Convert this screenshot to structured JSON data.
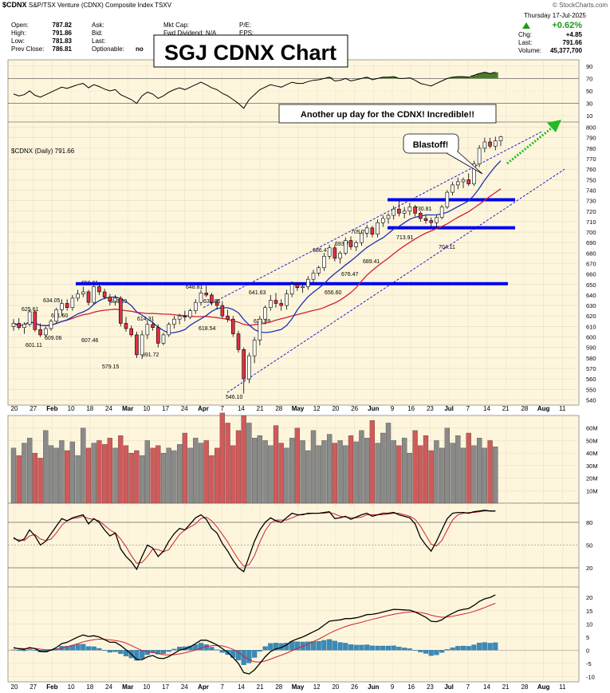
{
  "header": {
    "symbol": "$CDNX",
    "description": "S&P/TSX Venture (CDNX) Composite Index  TSXV",
    "quote_labels": [
      "Open:",
      "High:",
      "Low:",
      "Prev Close:"
    ],
    "quote_values": [
      "787.82",
      "791.86",
      "781.83",
      "786.81"
    ],
    "mid_labels": [
      "Ask:",
      "Bid:",
      "Last:",
      "Optionable:"
    ],
    "optionable_value": "no",
    "cap_labels": [
      "Mkt Cap:",
      "Fwd Dividend: N/A"
    ],
    "pe_labels": [
      "P/E:",
      "EPS:"
    ],
    "watermark": "© StockCharts.com",
    "date": "Thursday  17-Jul-2025",
    "change_pct": "+0.62%",
    "right_labels": [
      "Chg:",
      "Last:",
      "Volume:"
    ],
    "right_values": [
      "+4.85",
      "791.66",
      "45,377,700"
    ]
  },
  "title_box": "SGJ CDNX Chart",
  "annotations": {
    "another_up_day": "Another up day for the CDNX!  Incredible!!",
    "blastoff": "Blastoff!"
  },
  "colors": {
    "background_main": "#fdf6dd",
    "up": "#ffffff",
    "down": "#e03040",
    "ma_fast": "#2030b0",
    "ma_slow": "#d02030",
    "resistance": "#0000ee",
    "channel": "#2020cc",
    "arrow": "#22bb22",
    "volume_up": "#8a8a8a",
    "volume_down": "#d05a5a",
    "rsi_fill": "#4a7a2a",
    "macd_hist": "#3a8ab8"
  },
  "chart_data": {
    "type": "candlestick",
    "series_label": "$CDNX (Daily) 791.66",
    "price_axis_ticks": [
      540,
      550,
      560,
      570,
      580,
      590,
      600,
      610,
      620,
      630,
      640,
      650,
      660,
      670,
      680,
      690,
      700,
      710,
      720,
      730,
      740,
      750,
      760,
      770,
      780,
      790,
      800
    ],
    "rsi_axis_ticks": [
      10,
      30,
      50,
      70,
      90
    ],
    "volume_axis_ticks": [
      "10M",
      "20M",
      "30M",
      "40M",
      "50M",
      "60M"
    ],
    "stoch_axis_ticks": [
      20,
      50,
      80
    ],
    "macd_axis_ticks": [
      -10,
      -5,
      0,
      5,
      10,
      15,
      20
    ],
    "x_axis_labels": [
      "20",
      "27",
      "Feb",
      "10",
      "18",
      "24",
      "Mar",
      "10",
      "17",
      "24",
      "Apr",
      "7",
      "14",
      "21",
      "28",
      "May",
      "12",
      "20",
      "26",
      "Jun",
      "9",
      "16",
      "23",
      "Jul",
      "7",
      "14",
      "21",
      "28",
      "Aug",
      "11"
    ],
    "price_ylim": [
      535,
      805
    ],
    "candles": [
      [
        610,
        617,
        606,
        613
      ],
      [
        613,
        618,
        607,
        609
      ],
      [
        609,
        614,
        603,
        612
      ],
      [
        612,
        626,
        610,
        624
      ],
      [
        624,
        626,
        605,
        607
      ],
      [
        607,
        613,
        600,
        602
      ],
      [
        602,
        610,
        600,
        608
      ],
      [
        608,
        617,
        606,
        615
      ],
      [
        615,
        628,
        613,
        626
      ],
      [
        626,
        636,
        620,
        632
      ],
      [
        632,
        636,
        625,
        628
      ],
      [
        628,
        640,
        625,
        637
      ],
      [
        637,
        645,
        634,
        641
      ],
      [
        641,
        648,
        638,
        643
      ],
      [
        643,
        645,
        630,
        633
      ],
      [
        633,
        651,
        631,
        648
      ],
      [
        648,
        652,
        640,
        643
      ],
      [
        643,
        646,
        636,
        638
      ],
      [
        638,
        641,
        630,
        634
      ],
      [
        634,
        640,
        630,
        637
      ],
      [
        637,
        639,
        610,
        613
      ],
      [
        613,
        619,
        605,
        608
      ],
      [
        608,
        611,
        600,
        602
      ],
      [
        602,
        605,
        580,
        583
      ],
      [
        583,
        606,
        579,
        602
      ],
      [
        602,
        616,
        598,
        612
      ],
      [
        612,
        615,
        606,
        609
      ],
      [
        609,
        612,
        590,
        594
      ],
      [
        594,
        604,
        592,
        602
      ],
      [
        602,
        614,
        600,
        612
      ],
      [
        612,
        620,
        608,
        617
      ],
      [
        617,
        622,
        612,
        620
      ],
      [
        620,
        625,
        615,
        619
      ],
      [
        619,
        627,
        617,
        625
      ],
      [
        625,
        636,
        622,
        633
      ],
      [
        633,
        645,
        630,
        642
      ],
      [
        642,
        649,
        638,
        640
      ],
      [
        640,
        642,
        630,
        633
      ],
      [
        633,
        636,
        626,
        630
      ],
      [
        630,
        634,
        618,
        620
      ],
      [
        620,
        626,
        614,
        617
      ],
      [
        617,
        620,
        600,
        603
      ],
      [
        603,
        606,
        585,
        588
      ],
      [
        588,
        590,
        546,
        560
      ],
      [
        560,
        585,
        556,
        582
      ],
      [
        582,
        600,
        575,
        597
      ],
      [
        597,
        620,
        592,
        617
      ],
      [
        617,
        630,
        612,
        628
      ],
      [
        628,
        640,
        625,
        635
      ],
      [
        635,
        642,
        628,
        632
      ],
      [
        632,
        636,
        625,
        630
      ],
      [
        630,
        645,
        626,
        641
      ],
      [
        641,
        653,
        638,
        650
      ],
      [
        650,
        652,
        644,
        647
      ],
      [
        647,
        650,
        642,
        648
      ],
      [
        648,
        658,
        645,
        655
      ],
      [
        655,
        664,
        652,
        661
      ],
      [
        661,
        668,
        658,
        666
      ],
      [
        666,
        680,
        663,
        677
      ],
      [
        677,
        688,
        674,
        685
      ],
      [
        685,
        688,
        672,
        675
      ],
      [
        675,
        682,
        670,
        680
      ],
      [
        680,
        695,
        678,
        692
      ],
      [
        692,
        696,
        683,
        686
      ],
      [
        686,
        692,
        682,
        690
      ],
      [
        690,
        702,
        687,
        699
      ],
      [
        699,
        707,
        695,
        704
      ],
      [
        704,
        706,
        695,
        698
      ],
      [
        698,
        712,
        695,
        709
      ],
      [
        709,
        716,
        705,
        713
      ],
      [
        713,
        718,
        708,
        716
      ],
      [
        716,
        725,
        712,
        722
      ],
      [
        722,
        730,
        715,
        718
      ],
      [
        718,
        724,
        713,
        720
      ],
      [
        720,
        728,
        716,
        724
      ],
      [
        724,
        726,
        715,
        718
      ],
      [
        718,
        720,
        710,
        713
      ],
      [
        713,
        716,
        708,
        711
      ],
      [
        711,
        714,
        705,
        709
      ],
      [
        709,
        716,
        704,
        714
      ],
      [
        714,
        726,
        712,
        724
      ],
      [
        724,
        740,
        722,
        738
      ],
      [
        738,
        748,
        735,
        745
      ],
      [
        745,
        752,
        741,
        748
      ],
      [
        748,
        752,
        742,
        750
      ],
      [
        750,
        756,
        744,
        746
      ],
      [
        746,
        768,
        744,
        765
      ],
      [
        765,
        783,
        762,
        780
      ],
      [
        780,
        790,
        776,
        786
      ],
      [
        786,
        790,
        780,
        782
      ],
      [
        782,
        791,
        778,
        787
      ],
      [
        787,
        792,
        782,
        791
      ]
    ],
    "resistance_lines": [
      650.81,
      730.81,
      704.11
    ],
    "price_labels": [
      "650.81",
      "634.05",
      "625.61",
      "631.60",
      "633.69",
      "601.11",
      "609.06",
      "607.46",
      "579.15",
      "614.31",
      "591.72",
      "648.81",
      "632.96",
      "618.54",
      "546.10",
      "641.63",
      "626.99",
      "656.60",
      "686.47",
      "693.70",
      "705.70",
      "676.47",
      "689.41",
      "730.81",
      "713.91",
      "704.11"
    ],
    "volume": [
      44,
      38,
      48,
      52,
      40,
      36,
      58,
      46,
      44,
      50,
      42,
      49,
      38,
      60,
      44,
      48,
      50,
      47,
      52,
      44,
      54,
      46,
      40,
      42,
      38,
      50,
      44,
      46,
      40,
      44,
      42,
      47,
      56,
      44,
      52,
      48,
      50,
      38,
      44,
      72,
      64,
      46,
      58,
      70,
      64,
      52,
      54,
      50,
      46,
      62,
      48,
      44,
      52,
      60,
      50,
      42,
      58,
      46,
      50,
      55,
      48,
      50,
      46,
      54,
      49,
      58,
      52,
      66,
      48,
      56,
      64,
      50,
      46,
      52,
      40,
      58,
      46,
      54,
      42,
      50,
      44,
      60,
      48,
      54,
      44,
      56,
      46,
      52,
      44,
      50,
      45
    ],
    "rsi": [
      45,
      42,
      44,
      50,
      43,
      40,
      44,
      48,
      52,
      56,
      54,
      57,
      60,
      62,
      55,
      60,
      57,
      53,
      50,
      52,
      44,
      40,
      36,
      30,
      42,
      48,
      45,
      38,
      42,
      48,
      52,
      55,
      52,
      56,
      60,
      64,
      60,
      55,
      52,
      46,
      42,
      36,
      30,
      22,
      36,
      44,
      52,
      56,
      60,
      58,
      56,
      60,
      64,
      62,
      62,
      65,
      67,
      68,
      70,
      72,
      66,
      67,
      70,
      66,
      68,
      70,
      72,
      68,
      70,
      72,
      72,
      73,
      70,
      70,
      71,
      67,
      62,
      60,
      58,
      62,
      66,
      70,
      72,
      73,
      73,
      72,
      75,
      78,
      80,
      78,
      80
    ],
    "stoch_k": [
      60,
      55,
      58,
      70,
      62,
      50,
      55,
      65,
      75,
      85,
      82,
      86,
      88,
      90,
      78,
      85,
      80,
      70,
      62,
      66,
      45,
      35,
      28,
      18,
      35,
      50,
      46,
      35,
      42,
      55,
      65,
      72,
      70,
      78,
      86,
      90,
      84,
      72,
      66,
      52,
      42,
      30,
      20,
      15,
      35,
      55,
      70,
      80,
      86,
      82,
      80,
      86,
      92,
      90,
      90,
      92,
      92,
      92,
      93,
      94,
      85,
      86,
      88,
      84,
      87,
      90,
      92,
      88,
      90,
      92,
      92,
      93,
      90,
      88,
      86,
      78,
      60,
      50,
      42,
      55,
      70,
      85,
      92,
      93,
      93,
      92,
      94,
      95,
      96,
      95,
      95
    ],
    "stoch_d": [
      58,
      57,
      56,
      62,
      64,
      58,
      56,
      58,
      66,
      76,
      82,
      85,
      86,
      88,
      85,
      84,
      82,
      76,
      70,
      66,
      58,
      48,
      36,
      26,
      27,
      35,
      45,
      44,
      41,
      44,
      54,
      64,
      70,
      74,
      78,
      85,
      87,
      82,
      74,
      64,
      54,
      42,
      31,
      22,
      24,
      36,
      54,
      69,
      79,
      83,
      83,
      83,
      86,
      89,
      91,
      91,
      92,
      92,
      92,
      93,
      91,
      88,
      87,
      86,
      86,
      87,
      90,
      90,
      90,
      90,
      91,
      92,
      92,
      90,
      88,
      84,
      75,
      63,
      51,
      49,
      56,
      70,
      83,
      90,
      92,
      93,
      93,
      94,
      95,
      95,
      95
    ],
    "macd": [
      1,
      0.5,
      0.3,
      1.0,
      0.6,
      -0.4,
      -0.6,
      0.0,
      1.0,
      2.5,
      3.0,
      4.0,
      5.0,
      5.8,
      5.2,
      5.5,
      5.0,
      4.0,
      3.0,
      3.0,
      1.8,
      0.2,
      -1.5,
      -3.5,
      -3.6,
      -2.5,
      -2.0,
      -3.0,
      -3.2,
      -2.4,
      -1.2,
      0.0,
      0.5,
      1.3,
      2.5,
      3.8,
      3.8,
      3.0,
      2.0,
      0.6,
      -0.8,
      -2.8,
      -5.0,
      -8.5,
      -9.0,
      -7.5,
      -5.0,
      -2.5,
      -0.5,
      0.5,
      1.0,
      2.0,
      3.5,
      4.3,
      5.0,
      6.0,
      7.0,
      8.0,
      9.5,
      11.0,
      11.3,
      11.5,
      12.0,
      12.0,
      12.3,
      12.8,
      13.5,
      13.6,
      14.0,
      14.5,
      15.0,
      15.5,
      15.4,
      15.3,
      15.2,
      14.5,
      13.5,
      12.5,
      11.0,
      10.8,
      11.5,
      13.0,
      14.0,
      15.0,
      15.5,
      15.8,
      17.0,
      18.5,
      19.5,
      20.0,
      21.0
    ],
    "macd_signal": [
      0.8,
      0.7,
      0.6,
      0.7,
      0.7,
      0.4,
      0.2,
      0.2,
      0.3,
      0.8,
      1.3,
      1.9,
      2.5,
      3.2,
      3.6,
      4.0,
      4.2,
      4.1,
      3.9,
      3.7,
      3.3,
      2.7,
      1.8,
      0.8,
      -0.1,
      -0.6,
      -0.9,
      -1.3,
      -1.7,
      -1.8,
      -1.7,
      -1.4,
      -1.0,
      -0.5,
      0.1,
      0.8,
      1.4,
      1.7,
      1.8,
      1.6,
      1.1,
      0.3,
      -0.8,
      -2.3,
      -3.6,
      -4.4,
      -4.5,
      -4.1,
      -3.4,
      -2.6,
      -1.9,
      -1.1,
      -0.2,
      0.7,
      1.5,
      2.4,
      3.3,
      4.2,
      5.3,
      6.4,
      7.4,
      8.2,
      9.0,
      9.6,
      10.1,
      10.6,
      11.2,
      11.7,
      12.2,
      12.7,
      13.2,
      13.6,
      14.0,
      14.3,
      14.5,
      14.5,
      14.3,
      13.9,
      13.3,
      12.8,
      12.5,
      12.6,
      12.9,
      13.3,
      13.7,
      14.1,
      14.7,
      15.4,
      16.2,
      17.0,
      17.8
    ]
  }
}
